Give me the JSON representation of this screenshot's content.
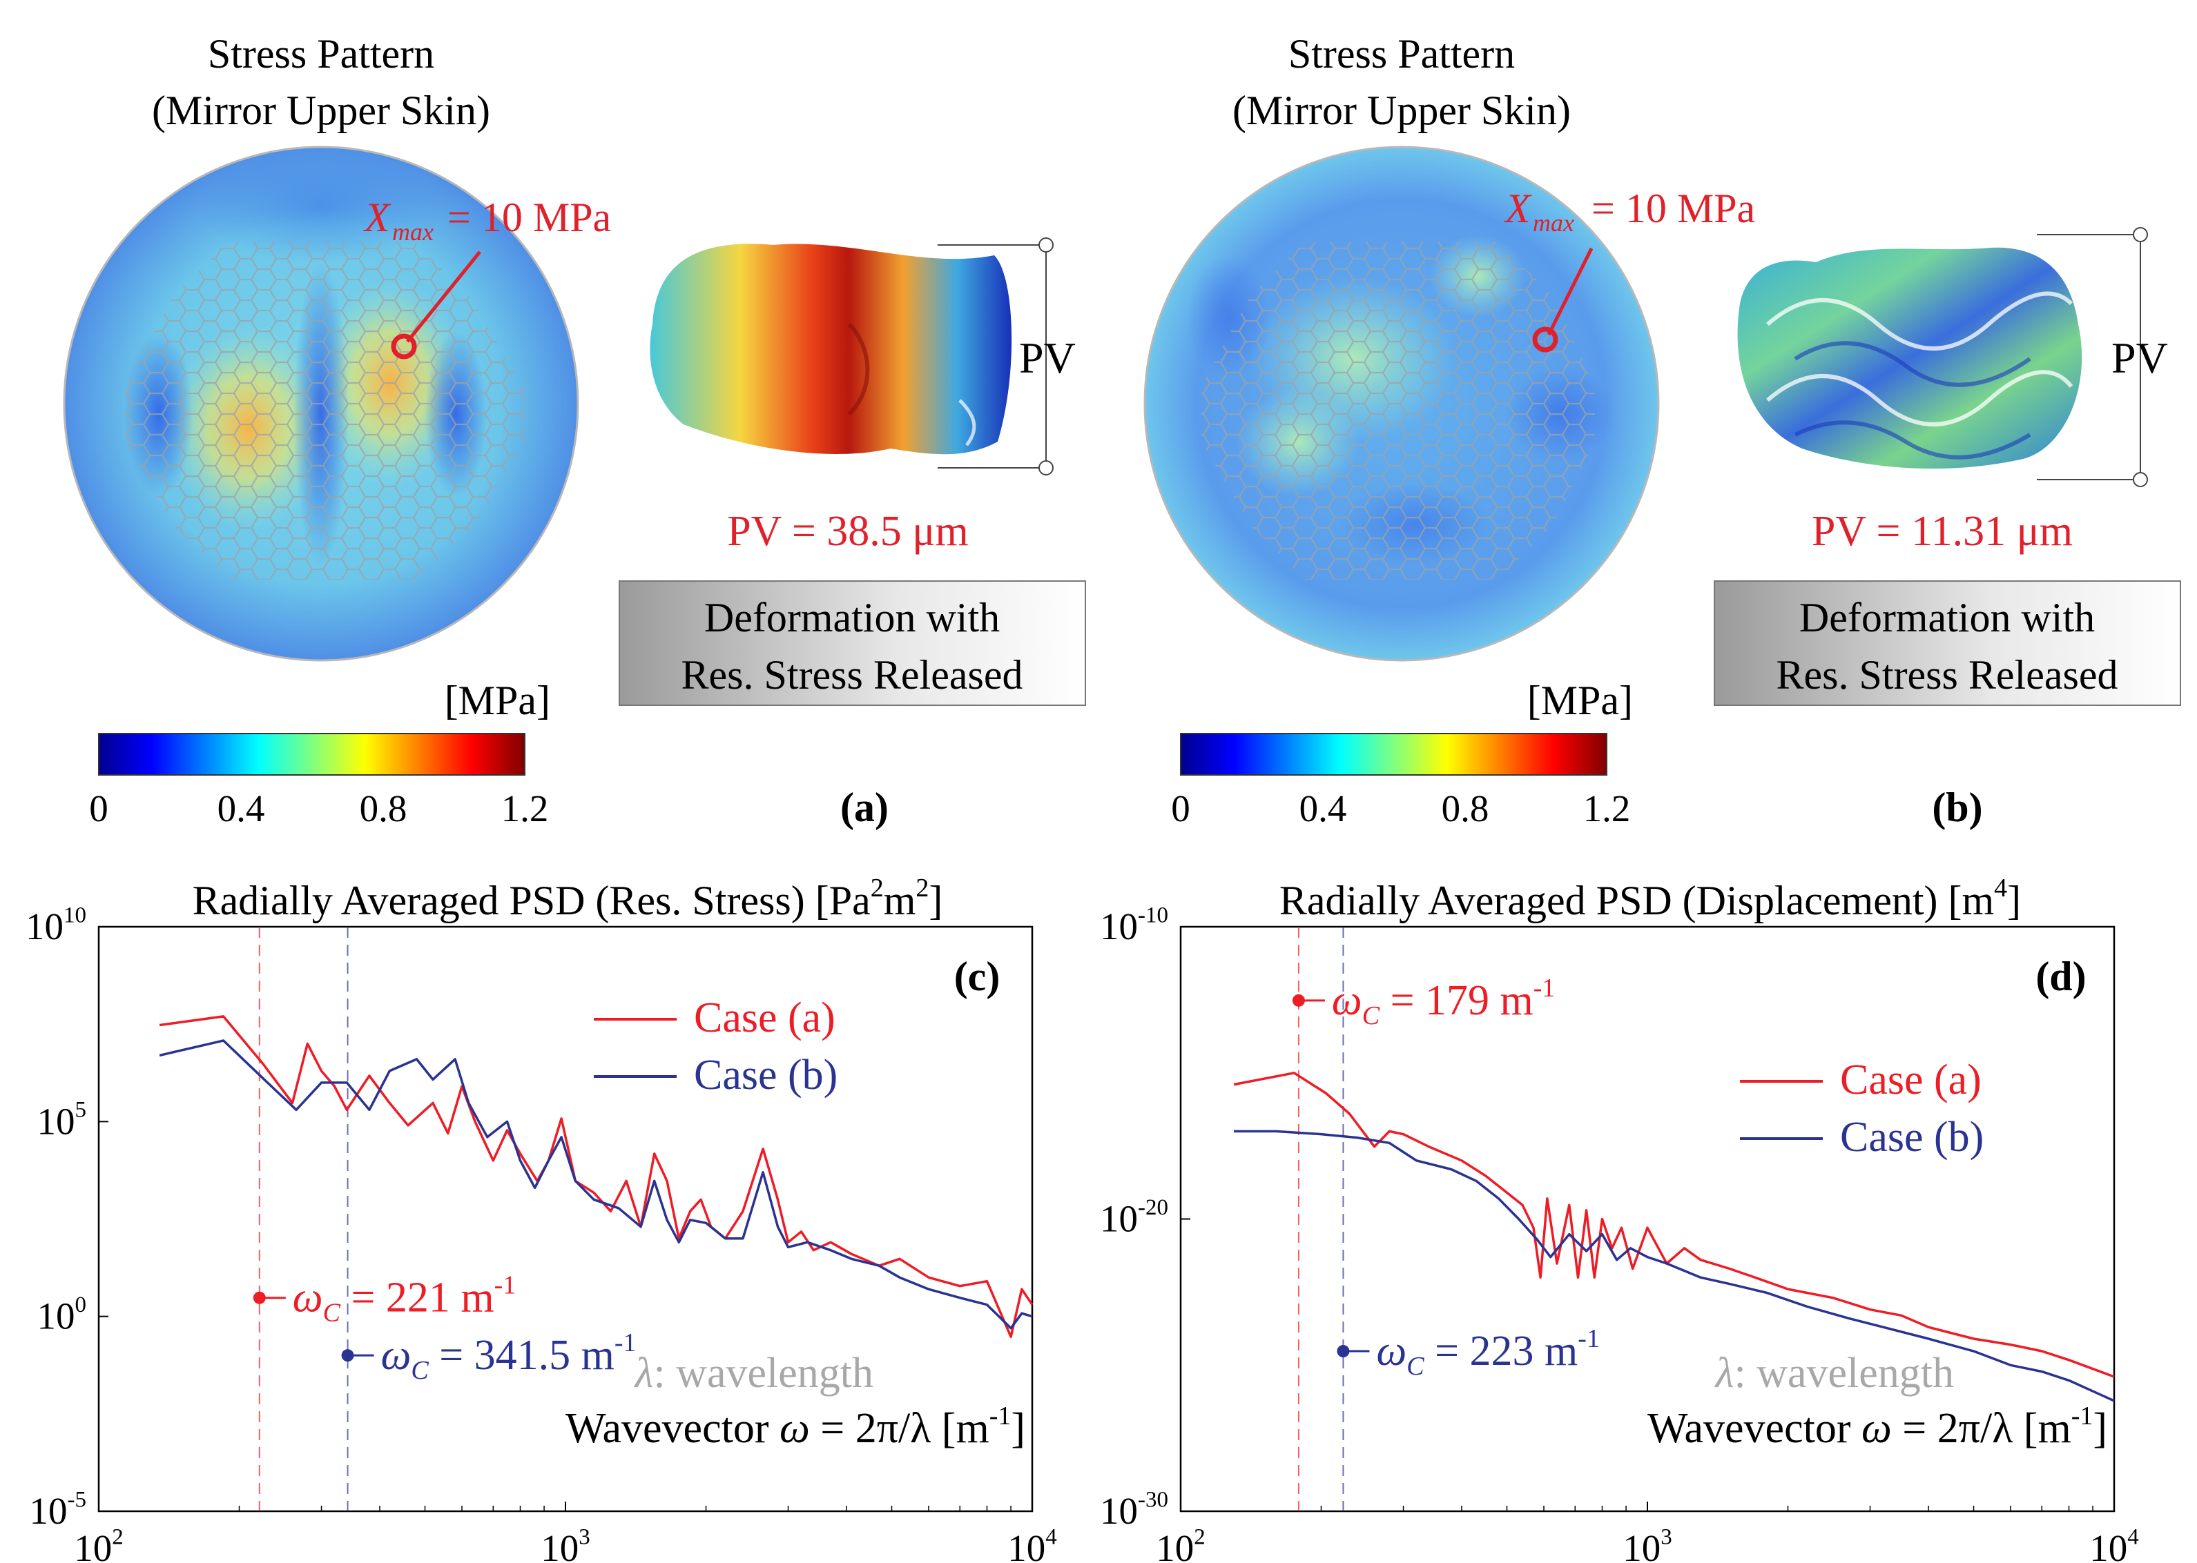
{
  "panels": {
    "a": {
      "label": "(a)",
      "title_line1": "Stress Pattern",
      "title_line2": "(Mirror Upper Skin)",
      "xmax_symbol": "X",
      "xmax_sub": "max",
      "xmax_value": "= 10 MPa",
      "pv_label": "PV",
      "pv_value": "PV  = 38.5 μm",
      "box_line1": "Deformation with",
      "box_line2": "Res. Stress Released",
      "colorbar_unit": "[MPa]",
      "colorbar_ticks": [
        "0",
        "0.4",
        "0.8",
        "1.2"
      ]
    },
    "b": {
      "label": "(b)",
      "title_line1": "Stress Pattern",
      "title_line2": "(Mirror Upper Skin)",
      "xmax_symbol": "X",
      "xmax_sub": "max",
      "xmax_value": "= 10 MPa",
      "pv_label": "PV",
      "pv_value": "PV  = 11.31 μm",
      "box_line1": "Deformation with",
      "box_line2": "Res. Stress Released",
      "colorbar_unit": "[MPa]",
      "colorbar_ticks": [
        "0",
        "0.4",
        "0.8",
        "1.2"
      ]
    }
  },
  "colors": {
    "case_a": "#ee1c25",
    "case_b": "#2a3391",
    "grey_text": "#a8a8a8",
    "annot_red": "#e0202a"
  },
  "chart_data": [
    {
      "id": "c",
      "type": "line",
      "panel_label": "(c)",
      "title": "Radially Averaged PSD (Res. Stress)",
      "unit_base": "[Pa",
      "unit_mid": "m",
      "unit_end": "]",
      "unit_exp": "2",
      "xscale": "log",
      "yscale": "log",
      "xlim": [
        100,
        10000
      ],
      "ylim": [
        1e-05,
        10000000000
      ],
      "xticks": [
        {
          "v": 100,
          "b": "10",
          "e": "2"
        },
        {
          "v": 1000,
          "b": "10",
          "e": "3"
        },
        {
          "v": 10000,
          "b": "10",
          "e": "4"
        }
      ],
      "yticks": [
        {
          "v": 1e-05,
          "b": "10",
          "e": "-5"
        },
        {
          "v": 1,
          "b": "10",
          "e": "0"
        },
        {
          "v": 100000,
          "b": "10",
          "e": "5"
        },
        {
          "v": 10000000000,
          "b": "10",
          "e": "10"
        }
      ],
      "legend": [
        "Case (a)",
        "Case (b)"
      ],
      "lambda_note": ": wavelength",
      "xlabel": "Wavevector",
      "xlabel_eq": "= 2π/λ",
      "xlabel_unit": "[m",
      "xlabel_unit_exp": "-1",
      "xlabel_unit_end": "]",
      "cutoffs": [
        {
          "series": "Case (a)",
          "omega": 221,
          "marker_y": 3,
          "label": "= 221 m",
          "exp": "-1"
        },
        {
          "series": "Case (b)",
          "omega": 341.5,
          "marker_y": 0.1,
          "label": "= 341.5 m",
          "exp": "-1"
        }
      ],
      "series": [
        {
          "name": "Case (a)",
          "points": [
            [
              135,
              30000000.0
            ],
            [
              185,
              50000000.0
            ],
            [
              225,
              3000000.0
            ],
            [
              260,
              300000.0
            ],
            [
              280,
              10000000.0
            ],
            [
              300,
              2000000.0
            ],
            [
              320,
              800000.0
            ],
            [
              340,
              200000.0
            ],
            [
              380,
              1500000.0
            ],
            [
              420,
              300000.0
            ],
            [
              460,
              80000.0
            ],
            [
              520,
              300000.0
            ],
            [
              560,
              50000.0
            ],
            [
              600,
              800000.0
            ],
            [
              640,
              100000.0
            ],
            [
              700,
              10000.0
            ],
            [
              750,
              60000.0
            ],
            [
              800,
              15000.0
            ],
            [
              870,
              3000.0
            ],
            [
              920,
              10000.0
            ],
            [
              980,
              120000.0
            ],
            [
              1050,
              3000.0
            ],
            [
              1150,
              1500.0
            ],
            [
              1250,
              500
            ],
            [
              1350,
              3000.0
            ],
            [
              1450,
              200
            ],
            [
              1550,
              15000.0
            ],
            [
              1650,
              3000.0
            ],
            [
              1750,
              100
            ],
            [
              1850,
              500
            ],
            [
              1950,
              1000.0
            ],
            [
              2050,
              200
            ],
            [
              2200,
              100
            ],
            [
              2400,
              500
            ],
            [
              2650,
              20000.0
            ],
            [
              2850,
              1000.0
            ],
            [
              3000,
              80
            ],
            [
              3200,
              150
            ],
            [
              3400,
              50
            ],
            [
              3700,
              80
            ],
            [
              4100,
              40
            ],
            [
              4700,
              20
            ],
            [
              5200,
              30
            ],
            [
              6000,
              10
            ],
            [
              7000,
              6
            ],
            [
              8000,
              8
            ],
            [
              9000,
              0.3
            ],
            [
              9500,
              5
            ],
            [
              10000,
              2
            ]
          ]
        },
        {
          "name": "Case (b)",
          "points": [
            [
              135,
              5000000.0
            ],
            [
              185,
              12000000.0
            ],
            [
              230,
              1000000.0
            ],
            [
              265,
              200000.0
            ],
            [
              300,
              1000000.0
            ],
            [
              340,
              1000000.0
            ],
            [
              380,
              200000.0
            ],
            [
              420,
              2000000.0
            ],
            [
              480,
              4000000.0
            ],
            [
              520,
              1200000.0
            ],
            [
              580,
              4000000.0
            ],
            [
              620,
              300000.0
            ],
            [
              680,
              40000.0
            ],
            [
              750,
              100000.0
            ],
            [
              800,
              10000.0
            ],
            [
              860,
              2000.0
            ],
            [
              920,
              10000.0
            ],
            [
              980,
              40000.0
            ],
            [
              1050,
              3000.0
            ],
            [
              1150,
              1000.0
            ],
            [
              1300,
              600
            ],
            [
              1450,
              200
            ],
            [
              1550,
              3000.0
            ],
            [
              1650,
              300
            ],
            [
              1750,
              80
            ],
            [
              1850,
              300
            ],
            [
              2000,
              250
            ],
            [
              2200,
              100
            ],
            [
              2400,
              100
            ],
            [
              2650,
              5000.0
            ],
            [
              2850,
              200
            ],
            [
              3000,
              60
            ],
            [
              3300,
              80
            ],
            [
              3700,
              50
            ],
            [
              4100,
              30
            ],
            [
              4700,
              20
            ],
            [
              5200,
              10
            ],
            [
              6000,
              5
            ],
            [
              7000,
              3
            ],
            [
              8000,
              2
            ],
            [
              9000,
              0.5
            ],
            [
              9500,
              1.2
            ],
            [
              10000,
              1
            ]
          ]
        }
      ]
    },
    {
      "id": "d",
      "type": "line",
      "panel_label": "(d)",
      "title": "Radially Averaged PSD (Displacement)",
      "unit_base": "[m",
      "unit_exp": "4",
      "unit_end": "]",
      "xscale": "log",
      "yscale": "log",
      "xlim": [
        100,
        10000
      ],
      "ylim": [
        1e-30,
        1e-10
      ],
      "xticks": [
        {
          "v": 100,
          "b": "10",
          "e": "2"
        },
        {
          "v": 1000,
          "b": "10",
          "e": "3"
        },
        {
          "v": 10000,
          "b": "10",
          "e": "4"
        }
      ],
      "yticks": [
        {
          "v": 1e-30,
          "b": "10",
          "e": "-30"
        },
        {
          "v": 1e-20,
          "b": "10",
          "e": "-20"
        },
        {
          "v": 1e-10,
          "b": "10",
          "e": "-10"
        }
      ],
      "legend": [
        "Case (a)",
        "Case (b)"
      ],
      "lambda_note": ": wavelength",
      "xlabel": "Wavevector",
      "xlabel_eq": "= 2π/λ",
      "xlabel_unit": "[m",
      "xlabel_unit_exp": "-1",
      "xlabel_unit_end": "]",
      "cutoffs": [
        {
          "series": "Case (a)",
          "omega": 179,
          "marker_y": 3e-13,
          "label": "= 179 m",
          "exp": "-1"
        },
        {
          "series": "Case (b)",
          "omega": 223,
          "marker_y": 3e-25,
          "label": "= 223 m",
          "exp": "-1"
        }
      ],
      "series": [
        {
          "name": "Case (a)",
          "points": [
            [
              130,
              4e-16
            ],
            [
              175,
              1e-15
            ],
            [
              205,
              2e-16
            ],
            [
              230,
              4e-17
            ],
            [
              260,
              3e-18
            ],
            [
              280,
              1e-17
            ],
            [
              300,
              8e-18
            ],
            [
              340,
              3e-18
            ],
            [
              400,
              1e-18
            ],
            [
              450,
              3e-19
            ],
            [
              500,
              8e-20
            ],
            [
              540,
              3e-20
            ],
            [
              570,
              5e-21
            ],
            [
              590,
              1e-22
            ],
            [
              610,
              5e-20
            ],
            [
              640,
              3e-22
            ],
            [
              680,
              3e-20
            ],
            [
              710,
              1e-22
            ],
            [
              740,
              2e-20
            ],
            [
              770,
              1e-22
            ],
            [
              800,
              1e-20
            ],
            [
              840,
              1e-21
            ],
            [
              880,
              5e-21
            ],
            [
              930,
              2e-22
            ],
            [
              1000,
              5e-21
            ],
            [
              1100,
              3e-22
            ],
            [
              1200,
              1e-21
            ],
            [
              1300,
              4e-22
            ],
            [
              1500,
              2e-22
            ],
            [
              1700,
              1e-22
            ],
            [
              2000,
              4e-23
            ],
            [
              2500,
              2e-23
            ],
            [
              3000,
              8e-24
            ],
            [
              3500,
              5e-24
            ],
            [
              4000,
              2e-24
            ],
            [
              5000,
              8e-25
            ],
            [
              6000,
              5e-25
            ],
            [
              7000,
              3e-25
            ],
            [
              8000,
              1.5e-25
            ],
            [
              10000,
              4e-26
            ]
          ]
        },
        {
          "name": "Case (b)",
          "points": [
            [
              130,
              1e-17
            ],
            [
              160,
              1e-17
            ],
            [
              200,
              8e-18
            ],
            [
              240,
              6e-18
            ],
            [
              280,
              4e-18
            ],
            [
              320,
              1e-18
            ],
            [
              380,
              5e-19
            ],
            [
              430,
              2e-19
            ],
            [
              480,
              5e-20
            ],
            [
              530,
              1e-20
            ],
            [
              580,
              2e-21
            ],
            [
              620,
              5e-22
            ],
            [
              680,
              3e-21
            ],
            [
              740,
              8e-22
            ],
            [
              800,
              3e-21
            ],
            [
              860,
              4e-22
            ],
            [
              920,
              1e-21
            ],
            [
              1000,
              5e-22
            ],
            [
              1100,
              3e-22
            ],
            [
              1300,
              1e-22
            ],
            [
              1500,
              6e-23
            ],
            [
              1800,
              3e-23
            ],
            [
              2200,
              1e-23
            ],
            [
              2700,
              4e-24
            ],
            [
              3200,
              2e-24
            ],
            [
              4000,
              8e-25
            ],
            [
              5000,
              3e-25
            ],
            [
              6000,
              1e-25
            ],
            [
              7000,
              6e-26
            ],
            [
              8000,
              3e-26
            ],
            [
              10000,
              6e-27
            ]
          ]
        }
      ]
    }
  ]
}
